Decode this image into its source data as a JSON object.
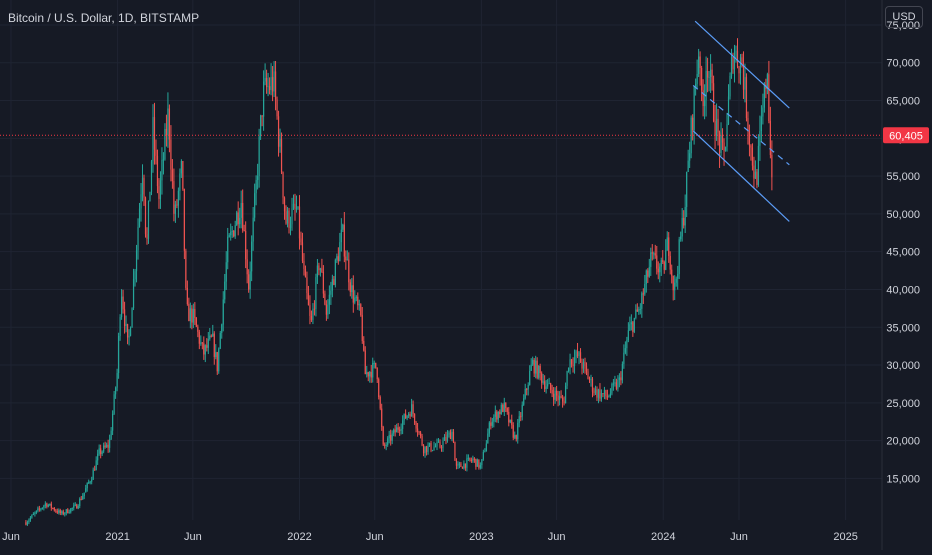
{
  "header": {
    "title": "Bitcoin / U.S. Dollar, 1D, BITSTAMP",
    "currency": "USD"
  },
  "colors": {
    "background": "#161a25",
    "grid": "#1f2432",
    "axis_text": "#d1d4dc",
    "up": "#26a69a",
    "down": "#ef5350",
    "channel": "#5b9cf6",
    "last_price": "#f23645"
  },
  "chart_data": {
    "type": "candlestick",
    "title": "Bitcoin / U.S. Dollar, 1D, BITSTAMP",
    "y_axis_position": "right",
    "grid": true,
    "y_ticks": [
      15000,
      20000,
      25000,
      30000,
      35000,
      40000,
      45000,
      50000,
      55000,
      60000,
      65000,
      70000,
      75000
    ],
    "y_tick_labels": [
      "15,000",
      "20,000",
      "25,000",
      "30,000",
      "35,000",
      "40,000",
      "45,000",
      "50,000",
      "55,000",
      "60,000",
      "65,000",
      "70,000",
      "75,000"
    ],
    "ylim": [
      9500,
      78300
    ],
    "x_ticks": [
      "2020-06-01",
      "2021-01-01",
      "2021-06-01",
      "2022-01-01",
      "2022-06-01",
      "2023-01-01",
      "2023-06-01",
      "2024-01-01",
      "2024-06-01",
      "2025-01-01"
    ],
    "x_tick_labels": [
      "Jun",
      "2021",
      "Jun",
      "2022",
      "Jun",
      "2023",
      "Jun",
      "2024",
      "Jun",
      "2025"
    ],
    "xlim": [
      "2020-05-10",
      "2025-03-15"
    ],
    "last_price": 60405,
    "last_price_label": "60,405",
    "series_close": [
      [
        "2020-07-01",
        9200
      ],
      [
        "2020-08-10",
        11700
      ],
      [
        "2020-09-10",
        10300
      ],
      [
        "2020-10-10",
        11300
      ],
      [
        "2020-10-25",
        13000
      ],
      [
        "2020-11-10",
        15300
      ],
      [
        "2020-11-25",
        18400
      ],
      [
        "2020-12-15",
        19400
      ],
      [
        "2020-12-31",
        28900
      ],
      [
        "2021-01-08",
        40500
      ],
      [
        "2021-01-22",
        32000
      ],
      [
        "2021-02-08",
        46000
      ],
      [
        "2021-02-21",
        57000
      ],
      [
        "2021-02-28",
        45000
      ],
      [
        "2021-03-13",
        61000
      ],
      [
        "2021-03-25",
        52000
      ],
      [
        "2021-04-13",
        63500
      ],
      [
        "2021-04-25",
        49000
      ],
      [
        "2021-05-10",
        56000
      ],
      [
        "2021-05-19",
        37000
      ],
      [
        "2021-06-01",
        36500
      ],
      [
        "2021-06-22",
        31500
      ],
      [
        "2021-07-10",
        33500
      ],
      [
        "2021-07-20",
        29800
      ],
      [
        "2021-08-10",
        45500
      ],
      [
        "2021-09-06",
        51800
      ],
      [
        "2021-09-21",
        40500
      ],
      [
        "2021-10-20",
        66000
      ],
      [
        "2021-11-10",
        67500
      ],
      [
        "2021-11-25",
        57000
      ],
      [
        "2021-12-04",
        49000
      ],
      [
        "2021-12-27",
        50500
      ],
      [
        "2022-01-10",
        41800
      ],
      [
        "2022-01-24",
        35000
      ],
      [
        "2022-02-10",
        44000
      ],
      [
        "2022-02-24",
        37000
      ],
      [
        "2022-03-28",
        47500
      ],
      [
        "2022-04-15",
        40000
      ],
      [
        "2022-05-05",
        36000
      ],
      [
        "2022-05-12",
        28800
      ],
      [
        "2022-06-05",
        29800
      ],
      [
        "2022-06-18",
        19000
      ],
      [
        "2022-07-10",
        21000
      ],
      [
        "2022-08-14",
        24300
      ],
      [
        "2022-09-07",
        19000
      ],
      [
        "2022-10-10",
        19300
      ],
      [
        "2022-11-05",
        21300
      ],
      [
        "2022-11-10",
        16300
      ],
      [
        "2022-12-15",
        17500
      ],
      [
        "2022-12-31",
        16500
      ],
      [
        "2023-01-20",
        22700
      ],
      [
        "2023-02-15",
        24500
      ],
      [
        "2023-03-10",
        20200
      ],
      [
        "2023-04-13",
        30300
      ],
      [
        "2023-05-15",
        27000
      ],
      [
        "2023-06-15",
        25000
      ],
      [
        "2023-06-25",
        30500
      ],
      [
        "2023-07-14",
        31200
      ],
      [
        "2023-08-17",
        26500
      ],
      [
        "2023-09-10",
        25800
      ],
      [
        "2023-10-05",
        27800
      ],
      [
        "2023-10-24",
        34500
      ],
      [
        "2023-11-15",
        37500
      ],
      [
        "2023-12-08",
        44000
      ],
      [
        "2023-12-31",
        42300
      ],
      [
        "2024-01-11",
        46500
      ],
      [
        "2024-01-23",
        39500
      ],
      [
        "2024-02-14",
        51800
      ],
      [
        "2024-02-28",
        62500
      ],
      [
        "2024-03-14",
        73000
      ],
      [
        "2024-03-19",
        62000
      ],
      [
        "2024-03-28",
        71000
      ],
      [
        "2024-04-17",
        61000
      ],
      [
        "2024-05-01",
        57000
      ],
      [
        "2024-05-20",
        71500
      ],
      [
        "2024-06-07",
        70000
      ],
      [
        "2024-06-24",
        59000
      ],
      [
        "2024-07-05",
        54000
      ],
      [
        "2024-07-28",
        69500
      ],
      [
        "2024-08-05",
        54000
      ],
      [
        "2024-08-08",
        60405
      ]
    ],
    "annotations": [
      {
        "type": "channel-upper",
        "from": [
          "2024-03-05",
          75500
        ],
        "to": [
          "2024-09-10",
          64000
        ]
      },
      {
        "type": "channel-middle",
        "from": [
          "2024-03-01",
          67000
        ],
        "to": [
          "2024-09-10",
          56500
        ],
        "style": "dashed"
      },
      {
        "type": "channel-lower",
        "from": [
          "2024-03-01",
          61000
        ],
        "to": [
          "2024-09-10",
          49000
        ]
      }
    ]
  }
}
